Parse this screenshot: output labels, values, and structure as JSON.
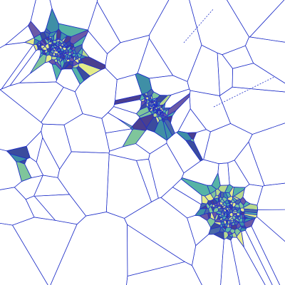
{
  "diagram": {
    "type": "voronoi",
    "colors": {
      "background": "#ffffff",
      "edge": "#1f2fc8",
      "cell_palette": [
        "#3b4c9e",
        "#4a6aa8",
        "#3f8fa6",
        "#56b3a6",
        "#7fc59b",
        "#b6d98d",
        "#e4ec8a",
        "#6a59a6",
        "#4b3f8f"
      ]
    },
    "dense_cluster_seeds": [
      {
        "name": "top-left-cluster",
        "count": 170
      },
      {
        "name": "mid-cluster",
        "count": 120
      },
      {
        "name": "bottom-right-cluster",
        "count": 190
      }
    ],
    "sparse_seed_count": 55
  }
}
